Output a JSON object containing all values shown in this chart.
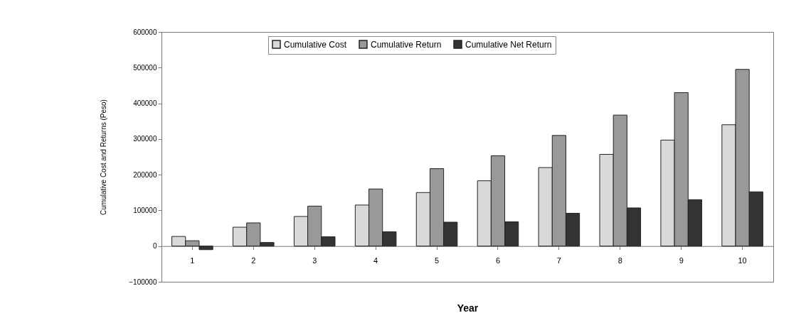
{
  "chart_data": {
    "type": "bar",
    "xlabel": "Year",
    "ylabel": "Cumulative Cost and Returns (Peso)",
    "categories": [
      "1",
      "2",
      "3",
      "4",
      "5",
      "6",
      "7",
      "8",
      "9",
      "10"
    ],
    "series": [
      {
        "name": "Cumulative Cost",
        "color": "#d9d9d9",
        "values": [
          27000,
          53000,
          83000,
          115000,
          150000,
          183000,
          220000,
          257000,
          297000,
          340000
        ]
      },
      {
        "name": "Cumulative Return",
        "color": "#999999",
        "values": [
          15000,
          65000,
          112000,
          160000,
          217000,
          253000,
          310000,
          367000,
          430000,
          495000
        ]
      },
      {
        "name": "Cumulative Net Return",
        "color": "#333333",
        "values": [
          -10000,
          10000,
          26000,
          40000,
          67000,
          68000,
          92000,
          107000,
          130000,
          152000
        ]
      }
    ],
    "ylim": [
      -100000,
      600000
    ],
    "yticks": [
      -100000,
      0,
      100000,
      200000,
      300000,
      400000,
      500000,
      600000
    ],
    "grid": false,
    "legend": "top"
  }
}
